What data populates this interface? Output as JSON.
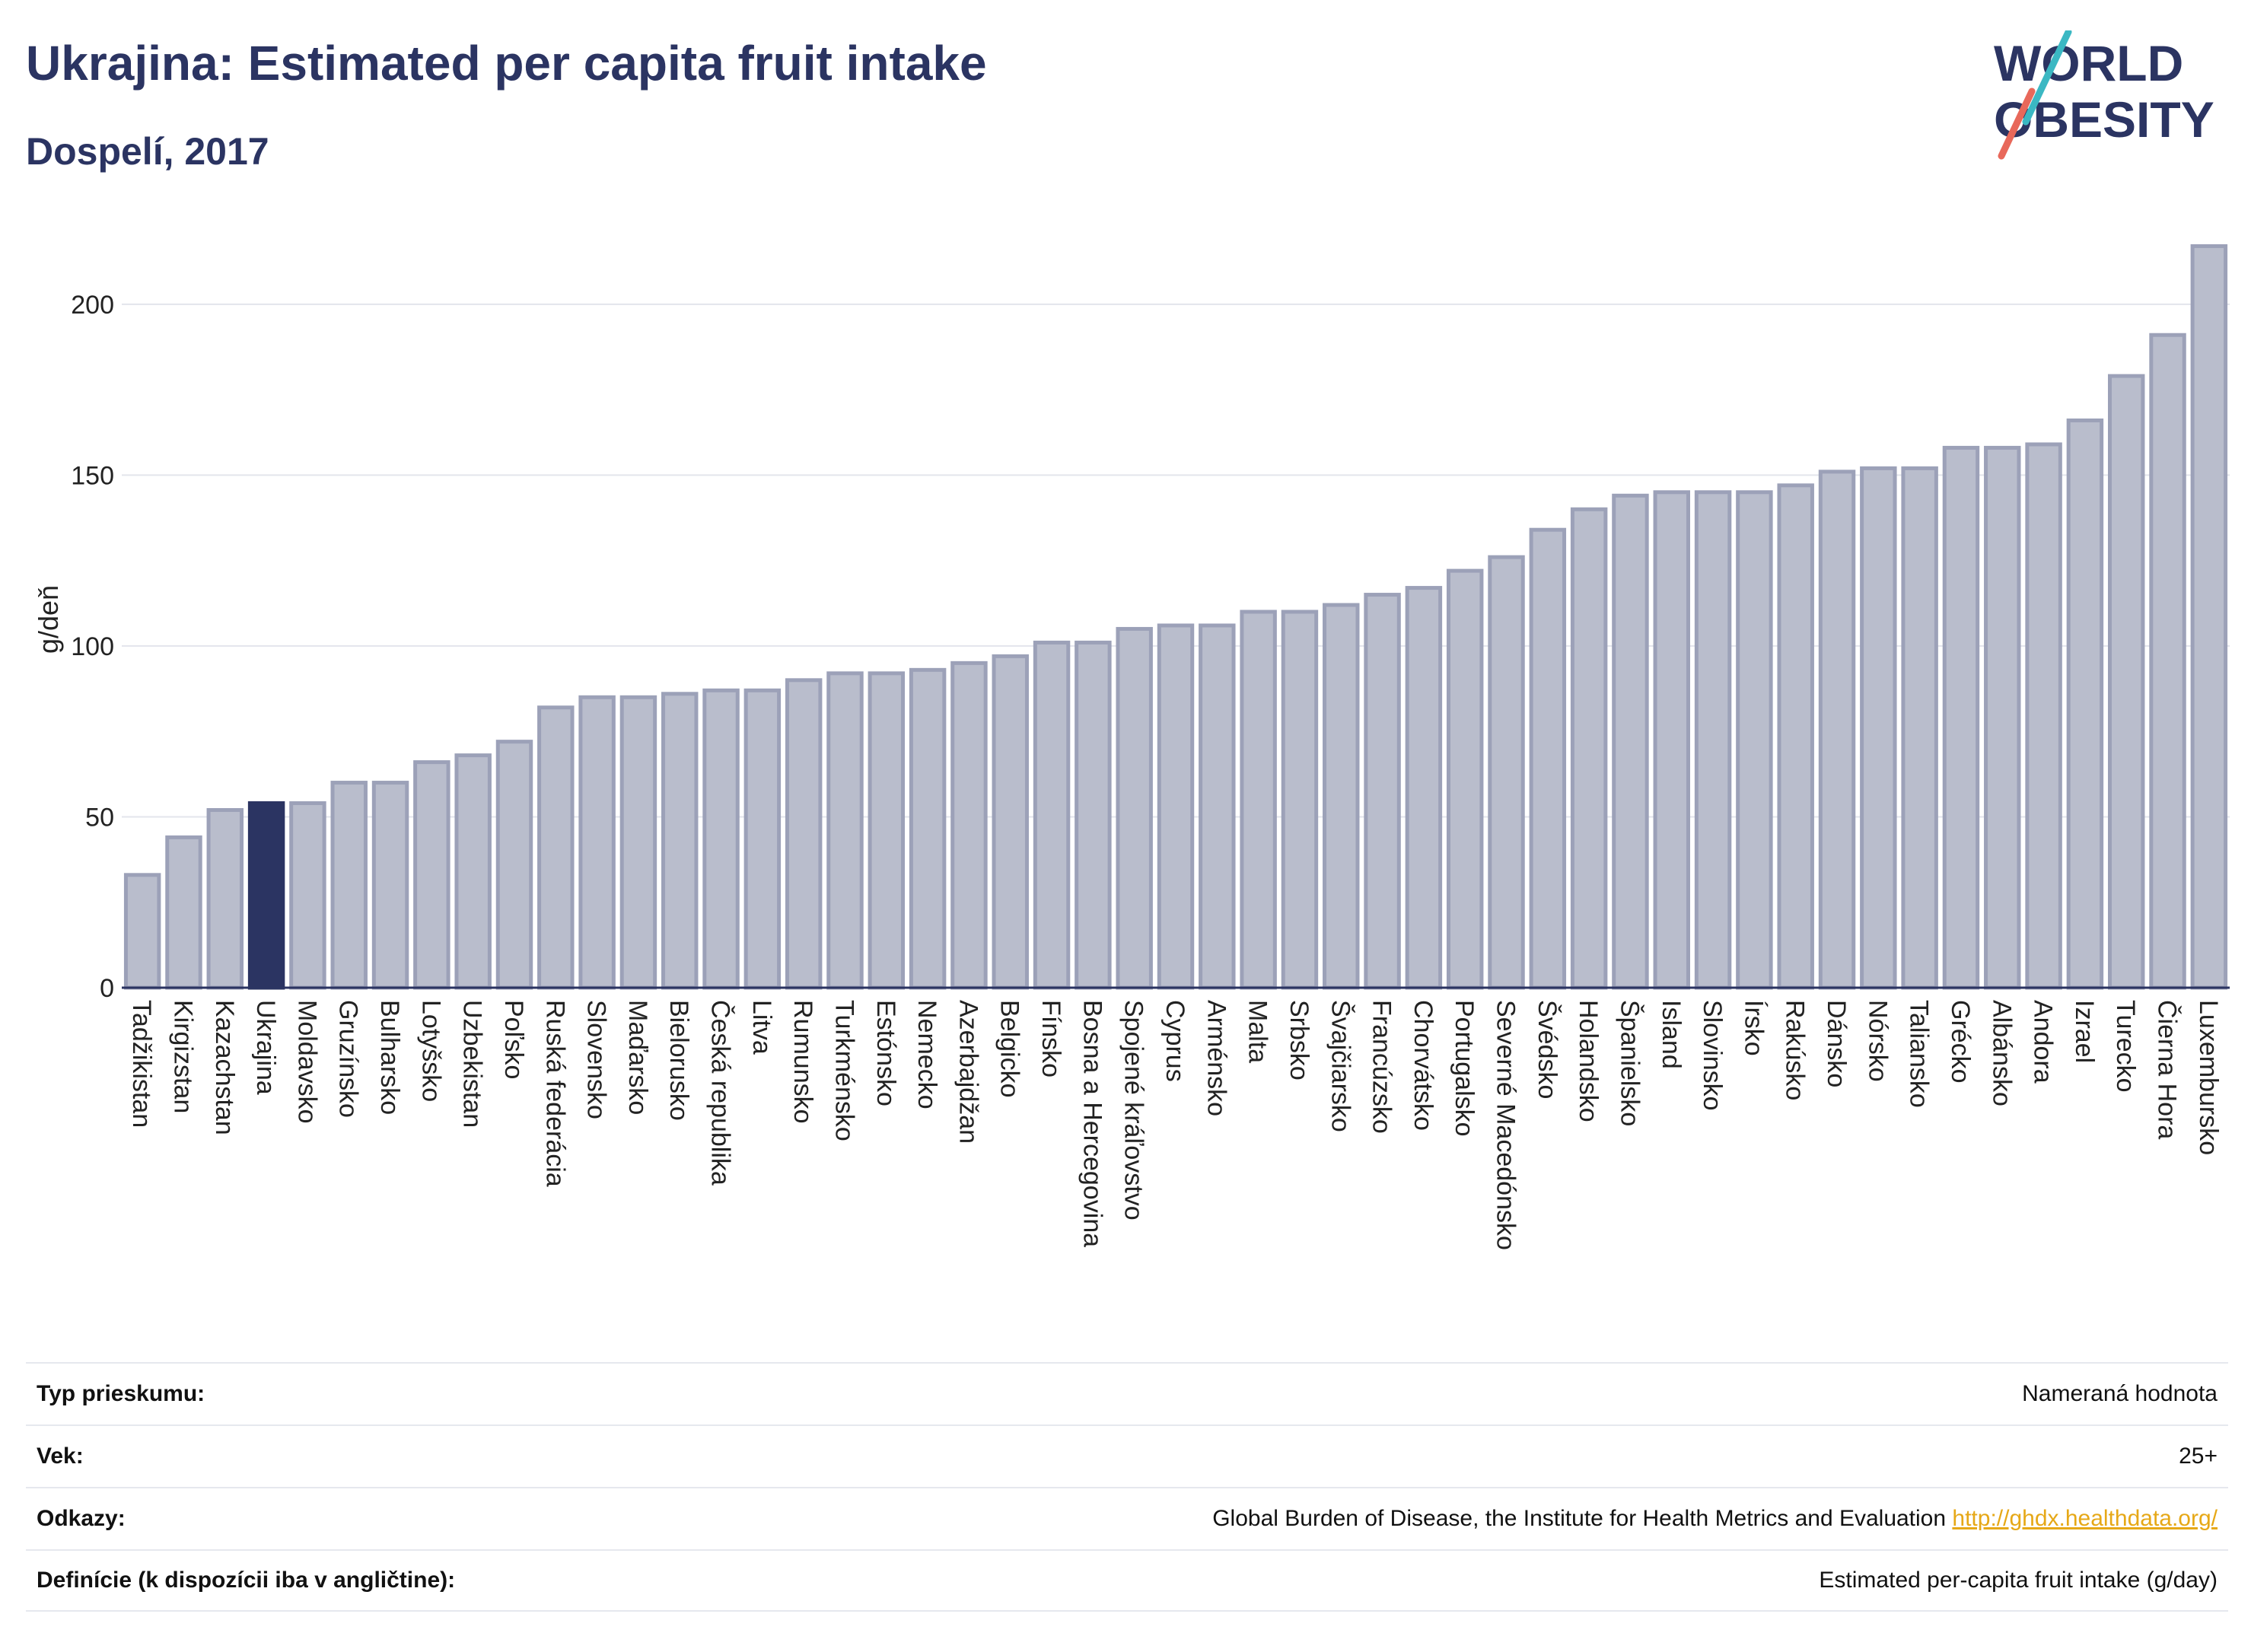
{
  "header": {
    "title": "Ukrajina: Estimated per capita fruit intake",
    "subtitle": "Dospelí, 2017"
  },
  "logo": {
    "line1": "WORLD",
    "line2": "OBESITY",
    "colors": {
      "text": "#2b3462",
      "slash_teal": "#3bb8c3",
      "slash_coral": "#e8685a"
    }
  },
  "colors": {
    "bar": "#b9bdcc",
    "bar_stroke": "#9ca1b8",
    "highlight": "#2b3462",
    "gridline": "#e3e5ec",
    "axis": "#2b3462"
  },
  "chart_data": {
    "type": "bar",
    "title": "Ukrajina: Estimated per capita fruit intake",
    "subtitle": "Dospelí, 2017",
    "ylabel": "g/deň",
    "xlabel": "",
    "ylim": [
      0,
      220
    ],
    "yticks": [
      0,
      50,
      100,
      150,
      200
    ],
    "grid": true,
    "highlight_category": "Ukrajina",
    "categories": [
      "Tadžikistan",
      "Kirgizstan",
      "Kazachstan",
      "Ukrajina",
      "Moldavsko",
      "Gruzínsko",
      "Bulharsko",
      "Lotyšsko",
      "Uzbekistan",
      "Poľsko",
      "Ruská federácia",
      "Slovensko",
      "Maďarsko",
      "Bielorusko",
      "Česká republika",
      "Litva",
      "Rumunsko",
      "Turkménsko",
      "Estónsko",
      "Nemecko",
      "Azerbajdžan",
      "Belgicko",
      "Fínsko",
      "Bosna a Hercegovina",
      "Spojené kráľovstvo",
      "Cyprus",
      "Arménsko",
      "Malta",
      "Srbsko",
      "Švajčiarsko",
      "Francúzsko",
      "Chorvátsko",
      "Portugalsko",
      "Severné Macedónsko",
      "Švédsko",
      "Holandsko",
      "Španielsko",
      "Island",
      "Slovinsko",
      "Írsko",
      "Rakúsko",
      "Dánsko",
      "Nórsko",
      "Taliansko",
      "Grécko",
      "Albánsko",
      "Andora",
      "Izrael",
      "Turecko",
      "Čierna Hora",
      "Luxembursko"
    ],
    "values": [
      33,
      44,
      52,
      54,
      54,
      60,
      60,
      66,
      68,
      72,
      82,
      85,
      85,
      86,
      87,
      87,
      90,
      92,
      92,
      93,
      95,
      97,
      101,
      101,
      105,
      106,
      106,
      110,
      110,
      112,
      115,
      117,
      122,
      126,
      134,
      140,
      144,
      145,
      145,
      145,
      147,
      151,
      152,
      152,
      158,
      158,
      159,
      166,
      179,
      191,
      217
    ]
  },
  "info": {
    "rows": [
      {
        "label": "Typ prieskumu:",
        "value": "Nameraná hodnota"
      },
      {
        "label": "Vek:",
        "value": "25+"
      },
      {
        "label": "Odkazy:",
        "value": "Global Burden of Disease, the Institute for Health Metrics and Evaluation",
        "link": "http://ghdx.healthdata.org/"
      },
      {
        "label": "Definície (k dispozícii iba v angličtine):",
        "value": "Estimated per-capita fruit intake (g/day)"
      }
    ]
  }
}
